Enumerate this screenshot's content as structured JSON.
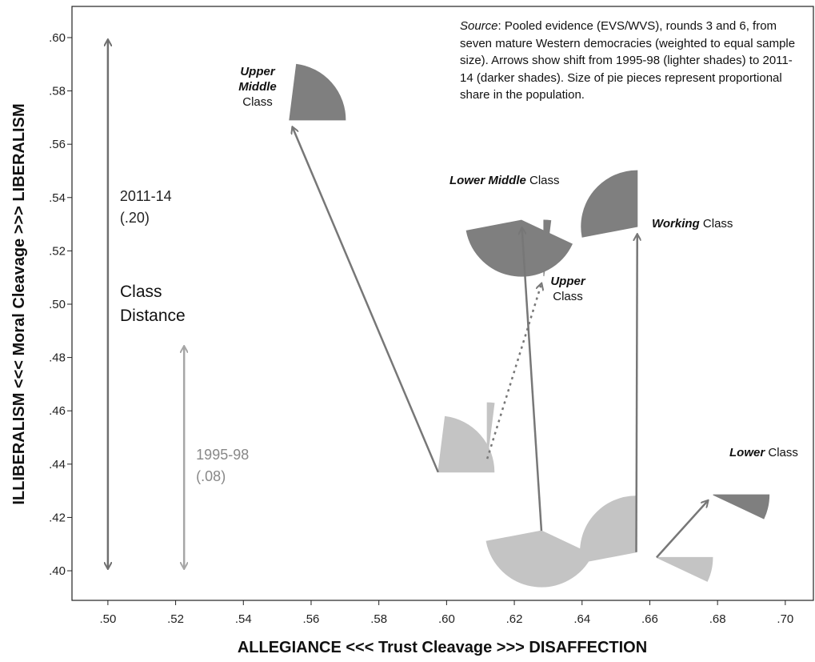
{
  "chart_data": {
    "type": "pie-shift",
    "xlabel": "ALLEGIANCE <<< Trust Cleavage >>> DISAFFECTION",
    "ylabel": "ILLIBERALISM <<< Moral Cleavage >>> LIBERALISM",
    "note": {
      "lead": "Source",
      "text": ": Pooled evidence (EVS/WVS), rounds 3 and 6, from seven mature Western democracies (weighted to equal sample size). Arrows show shift from 1995-98 (lighter shades) to 2011-14 (darker shades). Size of pie pieces represent proportional share in the population."
    },
    "xlim": [
      0.4894,
      0.7083
    ],
    "ylim": [
      0.3889,
      0.6117
    ],
    "xticks": [
      {
        "value": 0.5,
        "label": ".50"
      },
      {
        "value": 0.52,
        "label": ".52"
      },
      {
        "value": 0.54,
        "label": ".54"
      },
      {
        "value": 0.56,
        "label": ".56"
      },
      {
        "value": 0.58,
        "label": ".58"
      },
      {
        "value": 0.6,
        "label": ".60"
      },
      {
        "value": 0.62,
        "label": ".62"
      },
      {
        "value": 0.64,
        "label": ".64"
      },
      {
        "value": 0.66,
        "label": ".66"
      },
      {
        "value": 0.68,
        "label": ".68"
      },
      {
        "value": 0.7,
        "label": ".70"
      }
    ],
    "yticks": [
      {
        "value": 0.4,
        "label": ".40"
      },
      {
        "value": 0.42,
        "label": ".42"
      },
      {
        "value": 0.44,
        "label": ".44"
      },
      {
        "value": 0.46,
        "label": ".46"
      },
      {
        "value": 0.48,
        "label": ".48"
      },
      {
        "value": 0.5,
        "label": ".50"
      },
      {
        "value": 0.52,
        "label": ".52"
      },
      {
        "value": 0.54,
        "label": ".54"
      },
      {
        "value": 0.56,
        "label": ".56"
      },
      {
        "value": 0.58,
        "label": ".58"
      },
      {
        "value": 0.6,
        "label": ".60"
      }
    ],
    "periods": [
      {
        "name": "1995-98",
        "color": "#c4c4c4"
      },
      {
        "name": "2011-14",
        "color": "#7f7f7f"
      }
    ],
    "classes": [
      {
        "label_bold": "Upper Middle",
        "label_rest": "Class",
        "x": [
          0.5975,
          0.5536
        ],
        "y": [
          0.437,
          0.5691
        ],
        "share": [
          23,
          23
        ]
      },
      {
        "label_bold": "Upper",
        "label_rest": "Class",
        "x": [
          0.612,
          0.6287
        ],
        "y": [
          0.442,
          0.5105
        ],
        "share": [
          2,
          2
        ]
      },
      {
        "label_bold": "Working",
        "label_rest": "Class",
        "x": [
          0.656,
          0.6563
        ],
        "y": [
          0.407,
          0.5291
        ],
        "share": [
          28,
          28
        ]
      },
      {
        "label_bold": "Lower Middle",
        "label_rest": "Class",
        "x": [
          0.628,
          0.6221
        ],
        "y": [
          0.415,
          0.5315
        ],
        "share": [
          40,
          40
        ]
      },
      {
        "label_bold": "Lower",
        "label_rest": "Class",
        "x": [
          0.662,
          0.6787
        ],
        "y": [
          0.405,
          0.4285
        ],
        "share": [
          7,
          7
        ]
      }
    ],
    "distance_title": "Class Distance",
    "distances": [
      {
        "label": "2011-14",
        "value": 0.2,
        "value_label": "(.20)",
        "x": 0.5,
        "from": 0.4,
        "to": 0.6,
        "color": "#6f6f6f"
      },
      {
        "label": "1995-98",
        "value": 0.08,
        "value_label": "(.08)",
        "x": 0.5225,
        "from": 0.4,
        "to": 0.485,
        "color": "#a6a6a6"
      }
    ]
  }
}
